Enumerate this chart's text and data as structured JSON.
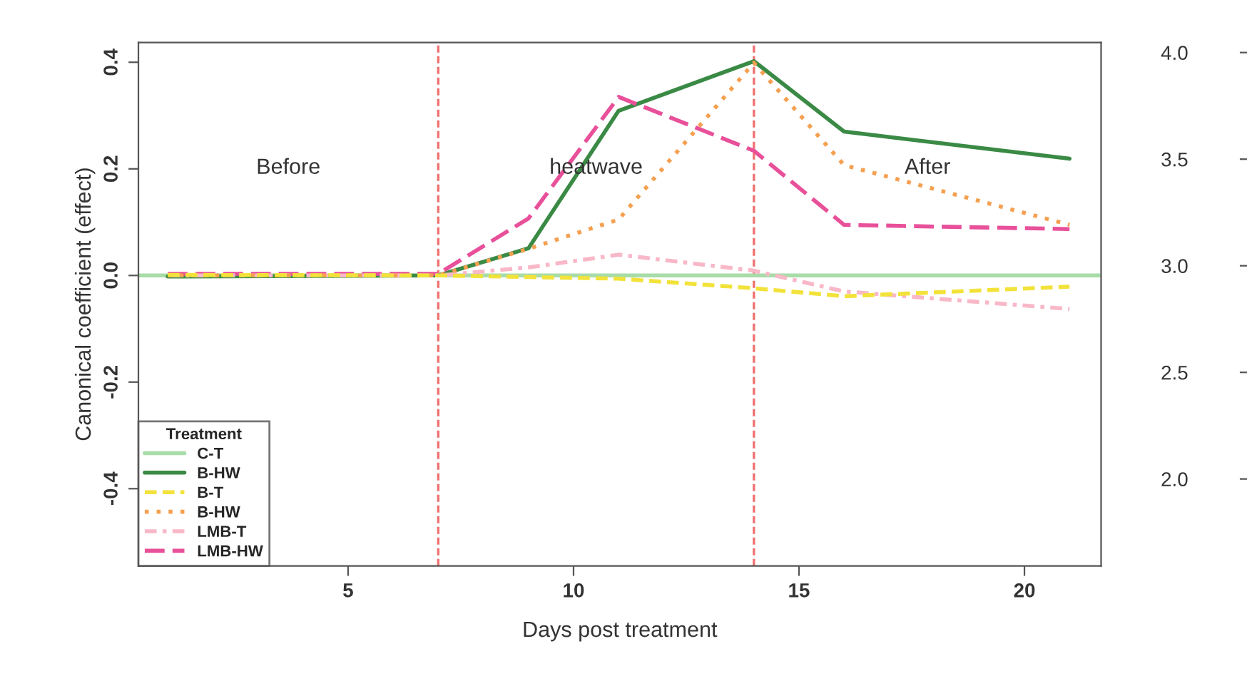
{
  "chart_data": {
    "type": "line",
    "xlabel": "Days post treatment",
    "ylabel": "Canonical coefficient (effect)",
    "legend_title": "Treatment",
    "xlim": [
      0.35,
      21.7
    ],
    "xticks": [
      5,
      10,
      15,
      20
    ],
    "ylim": [
      -0.545,
      0.437
    ],
    "yticks": [
      {
        "value": 0.4,
        "label": "0.4"
      },
      {
        "value": 0.2,
        "label": "0.2"
      },
      {
        "value": 0,
        "label": "0.0"
      },
      {
        "value": -0.2,
        "label": "-0.2"
      },
      {
        "value": -0.4,
        "label": "-0.4"
      }
    ],
    "y2lim": [
      1.592,
      4.047
    ],
    "y2ticks": [
      {
        "value": 2,
        "label": "2.0"
      },
      {
        "value": 2.5,
        "label": "2.5"
      },
      {
        "value": 3,
        "label": "3.0"
      },
      {
        "value": 3.5,
        "label": "3.5"
      },
      {
        "value": 4,
        "label": "4.0"
      }
    ],
    "series": [
      {
        "name": "C-T",
        "color": "#a8dca8",
        "line_style": "solid",
        "x": [
          0.35,
          21.7
        ],
        "values": [
          0,
          0
        ]
      },
      {
        "name": "B-HW",
        "color": "#3a8a45",
        "line_style": "solid",
        "x": [
          1,
          7,
          9,
          11,
          14,
          16,
          21
        ],
        "values": [
          -0.002,
          0,
          0.051,
          0.309,
          0.402,
          0.27,
          0.219
        ]
      },
      {
        "name": "B-T",
        "color": "#f2e23a",
        "line_style": "dashed",
        "x": [
          1,
          7,
          9,
          11,
          14,
          16,
          21
        ],
        "values": [
          0.001,
          0,
          -0.003,
          -0.006,
          -0.024,
          -0.039,
          -0.021
        ]
      },
      {
        "name": "B-HW",
        "color": "#f5a050",
        "line_style": "dotted",
        "x": [
          1,
          7,
          9,
          11,
          14,
          16,
          21
        ],
        "values": [
          0,
          0,
          0.05,
          0.105,
          0.399,
          0.207,
          0.095
        ]
      },
      {
        "name": "LMB-T",
        "color": "#f8b8c8",
        "line_style": "dashdot",
        "x": [
          1,
          7,
          9,
          11,
          14,
          16,
          21
        ],
        "values": [
          0,
          0,
          0.015,
          0.039,
          0.009,
          -0.03,
          -0.063
        ]
      },
      {
        "name": "LMB-HW",
        "color": "#e8509a",
        "line_style": "longdash",
        "x": [
          1,
          7,
          9,
          11,
          14,
          16,
          21
        ],
        "values": [
          0.003,
          0.003,
          0.107,
          0.335,
          0.234,
          0.095,
          0.087
        ]
      }
    ],
    "ref_lines": [
      {
        "axis": "x",
        "value": 7,
        "color": "#f07070",
        "line_style": "dashed"
      },
      {
        "axis": "x",
        "value": 14,
        "color": "#f07070",
        "line_style": "dashed"
      }
    ],
    "annotations": [
      "Before",
      "heatwave",
      "After"
    ],
    "legend": "bottom left",
    "grid": false
  }
}
